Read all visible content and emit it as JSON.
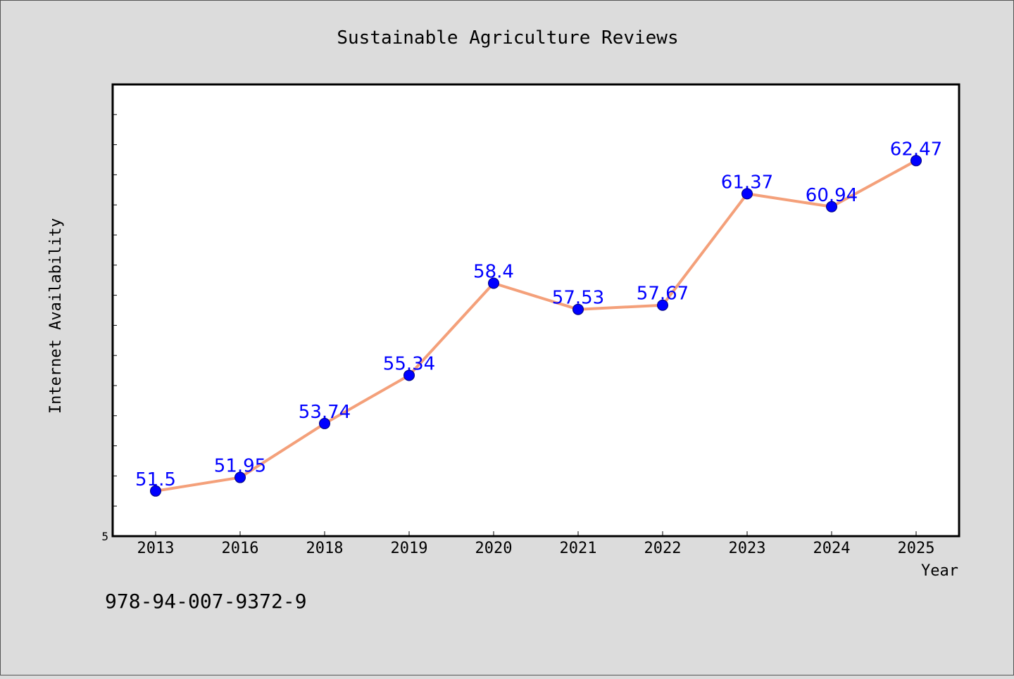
{
  "chart_data": {
    "type": "line",
    "title": "Sustainable Agriculture Reviews",
    "xlabel": "Year",
    "ylabel": "Internet Availability",
    "categories": [
      "2013",
      "2016",
      "2018",
      "2019",
      "2020",
      "2021",
      "2022",
      "2023",
      "2024",
      "2025"
    ],
    "series": [
      {
        "values": [
          51.5,
          51.95,
          53.74,
          55.34,
          58.4,
          57.53,
          57.67,
          61.37,
          60.94,
          62.47
        ],
        "data_labels": [
          "51.5",
          "51.95",
          "53.74",
          "55.34",
          "58.4",
          "57.53",
          "57.67",
          "61.37",
          "60.94",
          "62.47"
        ]
      }
    ],
    "ylim": [
      50,
      65
    ],
    "y_tick_labels": [
      "5"
    ],
    "grid": false,
    "legend": "none",
    "colors": {
      "line": "#f4a07a",
      "marker": "#0000ff",
      "data_label": "#0000ff",
      "plot_background": "#ffffff",
      "figure_background": "#dcdcdc"
    }
  },
  "footnote": "978-94-007-9372-9"
}
